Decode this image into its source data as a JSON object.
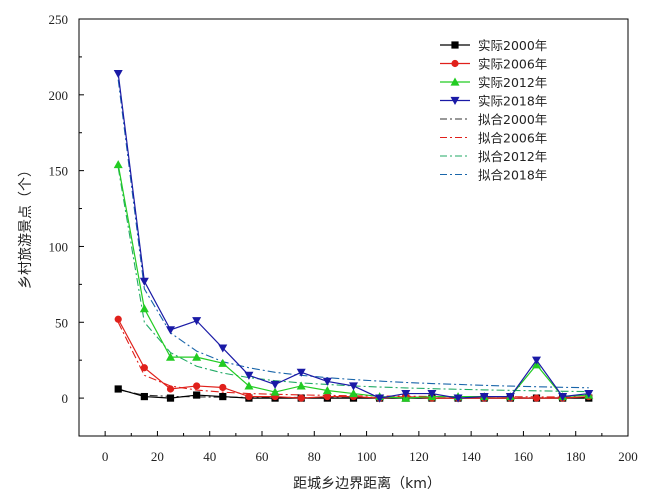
{
  "chart_data": {
    "type": "line",
    "xlabel": "距城乡边界距离（km）",
    "ylabel": "乡村旅游景点（个）",
    "xlim": [
      -10,
      200
    ],
    "ylim": [
      -25,
      250
    ],
    "xticks": [
      "0",
      "20",
      "40",
      "60",
      "80",
      "100",
      "120",
      "140",
      "160",
      "180",
      "200"
    ],
    "yticks": [
      "0",
      "50",
      "100",
      "150",
      "200",
      "250"
    ],
    "grid": false,
    "legend_position": "top-right",
    "x": [
      5,
      15,
      25,
      35,
      45,
      55,
      65,
      75,
      85,
      95,
      105,
      115,
      125,
      135,
      145,
      155,
      165,
      175,
      185
    ],
    "series": [
      {
        "name": "实际2000年",
        "kind": "actual",
        "marker": "square",
        "color": "#000000",
        "values": [
          6,
          1,
          0,
          2,
          1,
          0,
          0,
          0,
          0,
          0,
          0,
          0,
          0,
          0,
          0,
          0,
          0,
          0,
          0
        ]
      },
      {
        "name": "实际2006年",
        "kind": "actual",
        "marker": "circle",
        "color": "#e0201b",
        "values": [
          52,
          20,
          6,
          8,
          7,
          1,
          1,
          0,
          1,
          1,
          0,
          1,
          0,
          0,
          0,
          0,
          0,
          0,
          1
        ]
      },
      {
        "name": "实际2012年",
        "kind": "actual",
        "marker": "triangle-up",
        "color": "#22cc22",
        "values": [
          154,
          59,
          27,
          27,
          23,
          8,
          4,
          8,
          5,
          3,
          1,
          0,
          1,
          1,
          1,
          1,
          22,
          1,
          2
        ]
      },
      {
        "name": "实际2018年",
        "kind": "actual",
        "marker": "triangle-down",
        "color": "#1a1aa6",
        "values": [
          214,
          77,
          45,
          51,
          33,
          15,
          9,
          17,
          11,
          8,
          0,
          3,
          3,
          0,
          1,
          1,
          25,
          1,
          3
        ]
      },
      {
        "name": "拟合2000年",
        "kind": "fit",
        "color": "#333333",
        "values": [
          5.5,
          1.9,
          1.1,
          0.8,
          0.6,
          0.5,
          0.4,
          0.4,
          0.3,
          0.3,
          0.3,
          0.2,
          0.2,
          0.2,
          0.2,
          0.2,
          0.2,
          0.2,
          0.2
        ]
      },
      {
        "name": "拟合2006年",
        "kind": "fit",
        "color": "#e0201b",
        "values": [
          50,
          15,
          8,
          5.3,
          3.9,
          3.0,
          2.5,
          2.1,
          1.8,
          1.5,
          1.4,
          1.2,
          1.1,
          1.0,
          0.9,
          0.9,
          0.8,
          0.7,
          0.7
        ]
      },
      {
        "name": "拟合2012年",
        "kind": "fit",
        "color": "#22aa66",
        "values": [
          152,
          50,
          30,
          21,
          16.5,
          13.5,
          11.5,
          10,
          9,
          8,
          7.3,
          6.7,
          6.2,
          5.8,
          5.4,
          5.1,
          4.8,
          4.5,
          4.3
        ]
      },
      {
        "name": "拟合2018年",
        "kind": "fit",
        "color": "#1a66aa",
        "values": [
          210,
          72,
          43,
          31,
          24,
          20,
          17,
          15,
          13.5,
          12.2,
          11.2,
          10.3,
          9.6,
          9,
          8.4,
          7.9,
          7.5,
          7.1,
          6.8
        ]
      }
    ]
  }
}
